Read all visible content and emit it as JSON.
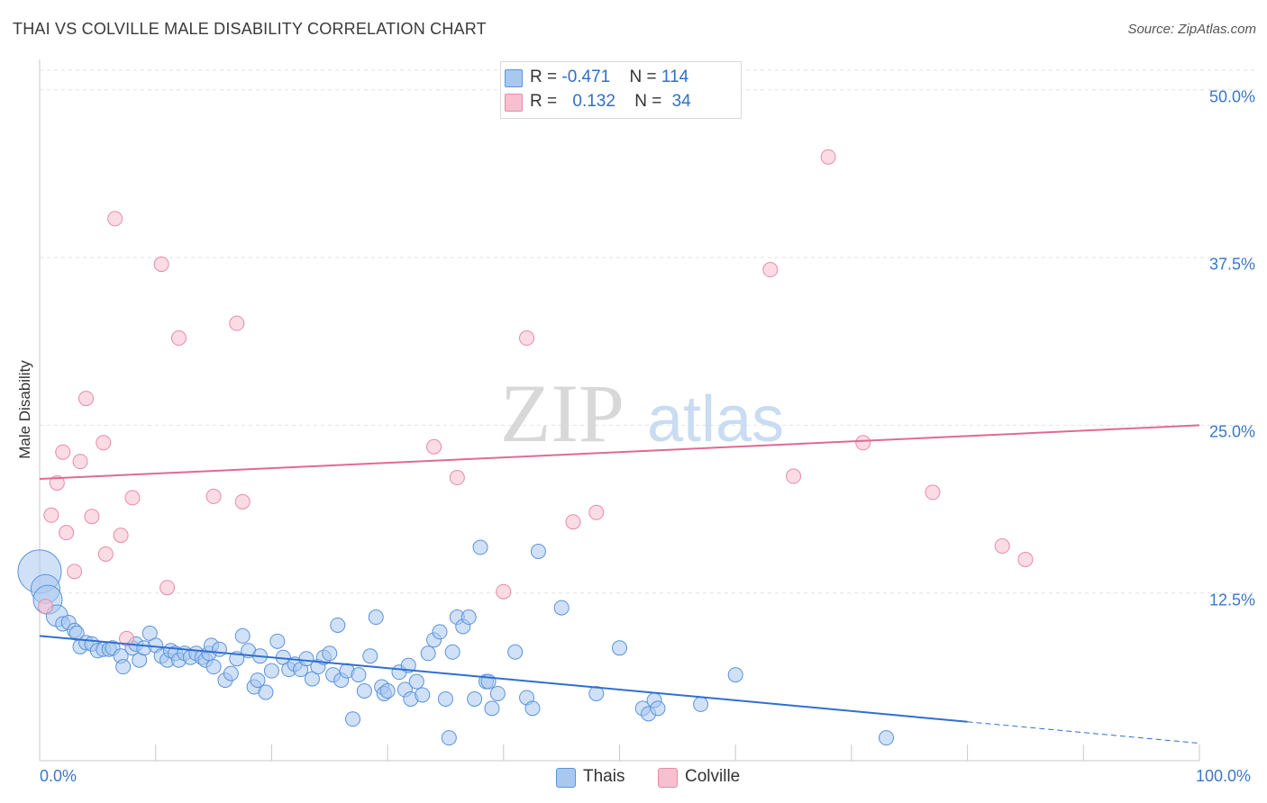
{
  "title": "THAI VS COLVILLE MALE DISABILITY CORRELATION CHART",
  "source": "Source: ZipAtlas.com",
  "watermark": {
    "part1": "ZIP",
    "part2": "atlas"
  },
  "stats": [
    {
      "r_label": "R = ",
      "r": "-0.471",
      "n_label": "N = ",
      "n": "114",
      "color": "#a9c8f0"
    },
    {
      "r_label": "R = ",
      "r": "0.132",
      "n_label": "N = ",
      "n": "34",
      "color": "#f7c0d0"
    }
  ],
  "legend": [
    {
      "label": "Thais",
      "color": "#a9c8f0"
    },
    {
      "label": "Colville",
      "color": "#f7c0d0"
    }
  ],
  "chart_data": {
    "type": "scatter",
    "title": "THAI VS COLVILLE MALE DISABILITY CORRELATION CHART",
    "xlabel": "",
    "ylabel": "Male Disability",
    "xlim": [
      0,
      100
    ],
    "ylim": [
      0,
      52
    ],
    "x_ticks": [
      "0.0%",
      "100.0%"
    ],
    "y_ticks": [
      {
        "value": 12.5,
        "label": "12.5%"
      },
      {
        "value": 25,
        "label": "25.0%"
      },
      {
        "value": 37.5,
        "label": "37.5%"
      },
      {
        "value": 50,
        "label": "50.0%"
      }
    ],
    "grid": true,
    "series": [
      {
        "name": "Thais",
        "color": "#5b93dc",
        "fill": "#a9c8f0",
        "trend": {
          "x0": 0,
          "y0": 9.3,
          "x1": 80,
          "y1": 2.9,
          "dashed_to_x": 100,
          "dashed_to_y": 1.3,
          "color": "#2f6fd0"
        },
        "points": [
          [
            0,
            14.1,
            3
          ],
          [
            0.5,
            12.8,
            2
          ],
          [
            0.7,
            12.0,
            2
          ],
          [
            1.5,
            10.8,
            1.5
          ],
          [
            2,
            10.2,
            1
          ],
          [
            2.5,
            10.3,
            1
          ],
          [
            3,
            9.7,
            1
          ],
          [
            3.2,
            9.5,
            1
          ],
          [
            3.5,
            8.5,
            1
          ],
          [
            4,
            8.8,
            1
          ],
          [
            4.5,
            8.7,
            1
          ],
          [
            5,
            8.2,
            1
          ],
          [
            5.5,
            8.3,
            1
          ],
          [
            6,
            8.3,
            1
          ],
          [
            6.3,
            8.4,
            1
          ],
          [
            7,
            7.8,
            1
          ],
          [
            7.2,
            7.0,
            1
          ],
          [
            8,
            8.4,
            1
          ],
          [
            8.3,
            8.7,
            1
          ],
          [
            8.6,
            7.5,
            1
          ],
          [
            9,
            8.4,
            1
          ],
          [
            9.5,
            9.5,
            1
          ],
          [
            10,
            8.6,
            1
          ],
          [
            10.5,
            7.8,
            1
          ],
          [
            11,
            7.5,
            1
          ],
          [
            11.3,
            8.2,
            1
          ],
          [
            11.7,
            8.0,
            1
          ],
          [
            12,
            7.5,
            1
          ],
          [
            12.5,
            8.0,
            1
          ],
          [
            13,
            7.7,
            1
          ],
          [
            13.5,
            8.0,
            1
          ],
          [
            14,
            7.7,
            1
          ],
          [
            14.3,
            7.5,
            1
          ],
          [
            14.6,
            8.0,
            1
          ],
          [
            14.8,
            8.6,
            1
          ],
          [
            15,
            7.0,
            1
          ],
          [
            15.5,
            8.3,
            1
          ],
          [
            16,
            6.0,
            1
          ],
          [
            16.5,
            6.5,
            1
          ],
          [
            17,
            7.6,
            1
          ],
          [
            17.5,
            9.3,
            1
          ],
          [
            18,
            8.2,
            1
          ],
          [
            18.5,
            5.5,
            1
          ],
          [
            18.8,
            6.0,
            1
          ],
          [
            19,
            7.8,
            1
          ],
          [
            19.5,
            5.1,
            1
          ],
          [
            20,
            6.7,
            1
          ],
          [
            20.5,
            8.9,
            1
          ],
          [
            21,
            7.7,
            1
          ],
          [
            21.5,
            6.8,
            1
          ],
          [
            22,
            7.2,
            1
          ],
          [
            22.5,
            6.8,
            1
          ],
          [
            23,
            7.6,
            1
          ],
          [
            23.5,
            6.1,
            1
          ],
          [
            24,
            7.0,
            1
          ],
          [
            24.5,
            7.7,
            1
          ],
          [
            25,
            8.0,
            1
          ],
          [
            25.3,
            6.4,
            1
          ],
          [
            25.7,
            10.1,
            1
          ],
          [
            26,
            6.0,
            1
          ],
          [
            26.5,
            6.7,
            1
          ],
          [
            27,
            3.1,
            1
          ],
          [
            27.5,
            6.4,
            1
          ],
          [
            28,
            5.2,
            1
          ],
          [
            28.5,
            7.8,
            1
          ],
          [
            29,
            10.7,
            1
          ],
          [
            29.5,
            5.5,
            1
          ],
          [
            29.7,
            5.0,
            1
          ],
          [
            30,
            5.2,
            1
          ],
          [
            31,
            6.6,
            1
          ],
          [
            31.5,
            5.3,
            1
          ],
          [
            31.8,
            7.1,
            1
          ],
          [
            32,
            4.6,
            1
          ],
          [
            32.5,
            5.9,
            1
          ],
          [
            33,
            4.9,
            1
          ],
          [
            33.5,
            8.0,
            1
          ],
          [
            34,
            9.0,
            1
          ],
          [
            34.5,
            9.6,
            1
          ],
          [
            35,
            4.6,
            1
          ],
          [
            35.3,
            1.7,
            1
          ],
          [
            35.6,
            8.1,
            1
          ],
          [
            36,
            10.7,
            1
          ],
          [
            36.5,
            10.0,
            1
          ],
          [
            37,
            10.7,
            1
          ],
          [
            37.5,
            4.6,
            1
          ],
          [
            38,
            15.9,
            1
          ],
          [
            38.5,
            5.9,
            1
          ],
          [
            38.7,
            5.9,
            1
          ],
          [
            39,
            3.9,
            1
          ],
          [
            39.5,
            5.0,
            1
          ],
          [
            41,
            8.1,
            1
          ],
          [
            42,
            4.7,
            1
          ],
          [
            42.5,
            3.9,
            1
          ],
          [
            43,
            15.6,
            1
          ],
          [
            45,
            11.4,
            1
          ],
          [
            48,
            5.0,
            1
          ],
          [
            50,
            8.4,
            1
          ],
          [
            52,
            3.9,
            1
          ],
          [
            52.5,
            3.5,
            1
          ],
          [
            53,
            4.5,
            1
          ],
          [
            53.3,
            3.9,
            1
          ],
          [
            57,
            4.2,
            1
          ],
          [
            60,
            6.4,
            1
          ],
          [
            73,
            1.7,
            1
          ]
        ]
      },
      {
        "name": "Colville",
        "color": "#e88aa8",
        "fill": "#f7c0d0",
        "trend": {
          "x0": 0,
          "y0": 21.0,
          "x1": 100,
          "y1": 25.0,
          "color": "#e06a92"
        },
        "points": [
          [
            0.5,
            11.5,
            1
          ],
          [
            1,
            18.3,
            1
          ],
          [
            1.5,
            20.7,
            1
          ],
          [
            2,
            23.0,
            1
          ],
          [
            2.3,
            17.0,
            1
          ],
          [
            3,
            14.1,
            1
          ],
          [
            3.5,
            22.3,
            1
          ],
          [
            4,
            27.0,
            1
          ],
          [
            4.5,
            18.2,
            1
          ],
          [
            5.5,
            23.7,
            1
          ],
          [
            5.7,
            15.4,
            1
          ],
          [
            6.5,
            40.4,
            1
          ],
          [
            7,
            16.8,
            1
          ],
          [
            7.5,
            9.1,
            1
          ],
          [
            8,
            19.6,
            1
          ],
          [
            10.5,
            37.0,
            1
          ],
          [
            11,
            12.9,
            1
          ],
          [
            12,
            31.5,
            1
          ],
          [
            15,
            19.7,
            1
          ],
          [
            17,
            32.6,
            1
          ],
          [
            17.5,
            19.3,
            1
          ],
          [
            34,
            23.4,
            1
          ],
          [
            36,
            21.1,
            1
          ],
          [
            40,
            12.6,
            1
          ],
          [
            42,
            31.5,
            1
          ],
          [
            46,
            17.8,
            1
          ],
          [
            48,
            18.5,
            1
          ],
          [
            63,
            36.6,
            1
          ],
          [
            65,
            21.2,
            1
          ],
          [
            68,
            45.0,
            1
          ],
          [
            71,
            23.7,
            1
          ],
          [
            77,
            20.0,
            1
          ],
          [
            83,
            16.0,
            1
          ],
          [
            85,
            15.0,
            1
          ]
        ]
      }
    ]
  }
}
